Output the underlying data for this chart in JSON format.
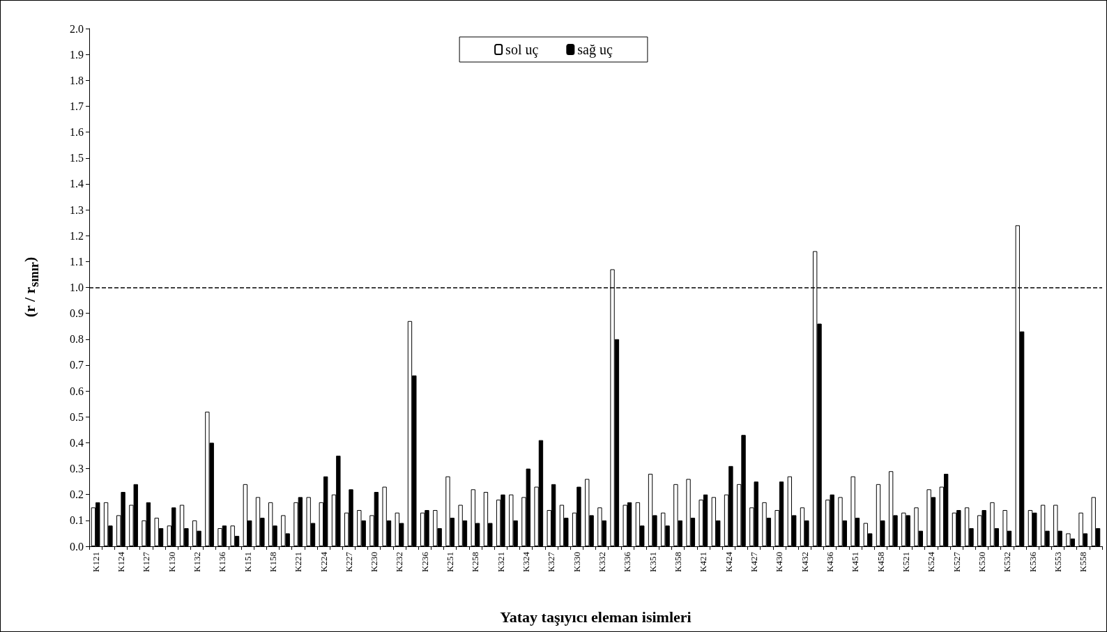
{
  "chart_data": {
    "type": "bar",
    "xlabel": "Yatay taşıyıcı eleman isimleri",
    "ylabel": "(r / r$_{sınır}$)",
    "categories": [
      "K121",
      null,
      "K124",
      null,
      "K127",
      null,
      "K130",
      null,
      "K132",
      null,
      "K136",
      null,
      "K151",
      null,
      "K158",
      null,
      "K221",
      null,
      "K224",
      null,
      "K227",
      null,
      "K230",
      null,
      "K232",
      null,
      "K236",
      null,
      "K251",
      null,
      "K258",
      null,
      "K321",
      null,
      "K324",
      null,
      "K327",
      null,
      "K330",
      null,
      "K332",
      null,
      "K336",
      null,
      "K351",
      null,
      "K358",
      null,
      "K421",
      null,
      "K424",
      null,
      "K427",
      null,
      "K430",
      null,
      "K432",
      null,
      "K436",
      null,
      "K451",
      null,
      "K458",
      null,
      "K521",
      null,
      "K524",
      null,
      "K527",
      null,
      "K530",
      null,
      "K532",
      null,
      "K536",
      null,
      "K553",
      null,
      "K558",
      null
    ],
    "series": [
      {
        "name": "sol uç",
        "color": "#ffffff",
        "values": [
          0.15,
          0.17,
          0.12,
          0.16,
          0.1,
          0.11,
          0.08,
          0.16,
          0.1,
          0.52,
          0.07,
          0.08,
          0.24,
          0.19,
          0.17,
          0.12,
          0.17,
          0.19,
          0.17,
          0.2,
          0.13,
          0.14,
          0.12,
          0.23,
          0.13,
          0.87,
          0.13,
          0.14,
          0.27,
          0.16,
          0.22,
          0.21,
          0.18,
          0.2,
          0.19,
          0.23,
          0.14,
          0.16,
          0.13,
          0.26,
          0.15,
          1.07,
          0.16,
          0.17,
          0.28,
          0.13,
          0.24,
          0.26,
          0.18,
          0.19,
          0.2,
          0.24,
          0.15,
          0.17,
          0.14,
          0.27,
          0.15,
          1.14,
          0.18,
          0.19,
          0.27,
          0.09,
          0.24,
          0.29,
          0.13,
          0.15,
          0.22,
          0.23,
          0.13,
          0.15,
          0.12,
          0.17,
          0.14,
          1.24,
          0.14,
          0.16,
          0.16,
          0.05,
          0.13,
          0.19
        ]
      },
      {
        "name": "sağ uç",
        "color": "#000000",
        "values": [
          0.17,
          0.08,
          0.21,
          0.24,
          0.17,
          0.07,
          0.15,
          0.07,
          0.06,
          0.4,
          0.08,
          0.04,
          0.1,
          0.11,
          0.08,
          0.05,
          0.19,
          0.09,
          0.27,
          0.35,
          0.22,
          0.1,
          0.21,
          0.1,
          0.09,
          0.66,
          0.14,
          0.07,
          0.11,
          0.1,
          0.09,
          0.09,
          0.2,
          0.1,
          0.3,
          0.41,
          0.24,
          0.11,
          0.23,
          0.12,
          0.1,
          0.8,
          0.17,
          0.08,
          0.12,
          0.08,
          0.1,
          0.11,
          0.2,
          0.1,
          0.31,
          0.43,
          0.25,
          0.11,
          0.25,
          0.12,
          0.1,
          0.86,
          0.2,
          0.1,
          0.11,
          0.05,
          0.1,
          0.12,
          0.12,
          0.06,
          0.19,
          0.28,
          0.14,
          0.07,
          0.14,
          0.07,
          0.06,
          0.83,
          0.13,
          0.06,
          0.06,
          0.03,
          0.05,
          0.07
        ]
      }
    ],
    "ylim": [
      0,
      2
    ],
    "yticks": [
      {
        "value": 0,
        "label": "0.0"
      },
      0.1,
      0.2,
      0.3,
      0.4,
      0.5,
      0.6,
      0.7,
      0.8,
      0.9,
      {
        "value": 1,
        "label": "1.0"
      },
      1.1,
      1.2,
      1.3,
      1.4,
      1.5,
      1.6,
      1.7,
      1.8,
      1.9,
      {
        "value": 2,
        "label": "2.0"
      }
    ],
    "ref_lines": [
      {
        "axis": "y",
        "value": 1,
        "line_style": "dashed",
        "color": "#000000"
      }
    ],
    "grid": false,
    "legend": "top"
  }
}
